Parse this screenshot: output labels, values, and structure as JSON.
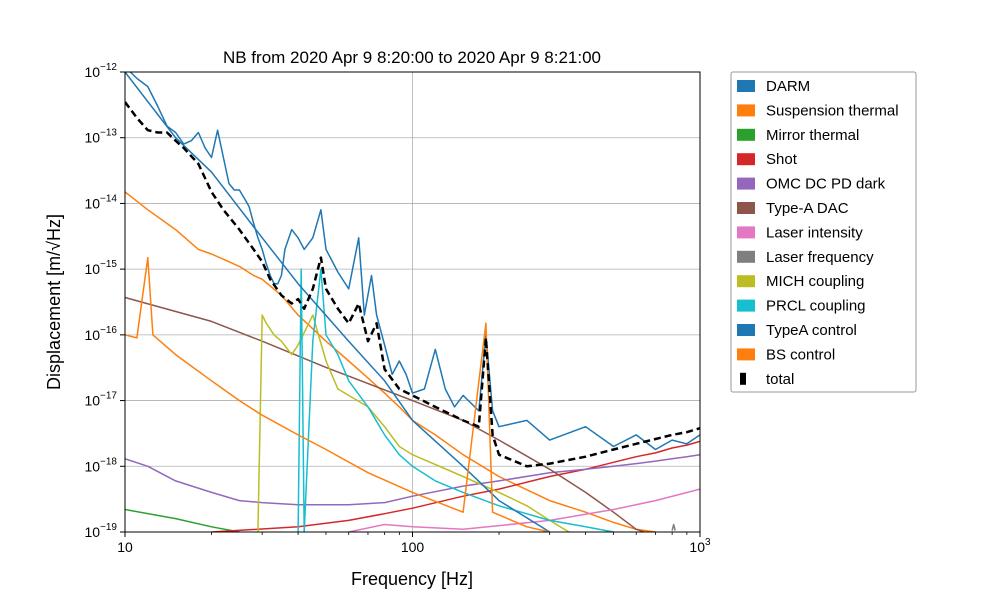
{
  "chart_data": {
    "type": "line",
    "title": "NB from 2020 Apr 9 8:20:00 to 2020 Apr 9 8:21:00",
    "xlabel": "Frequency [Hz]",
    "ylabel": "Displacement [m/√Hz]",
    "xscale": "log",
    "yscale": "log",
    "xlim": [
      10,
      1000
    ],
    "ylim": [
      1e-19,
      1e-12
    ],
    "grid": true,
    "legend_position": "outside-right",
    "x_ticks": [
      {
        "value": 10,
        "label": "10"
      },
      {
        "value": 100,
        "label": "100"
      },
      {
        "value": 1000,
        "label": "10^3"
      }
    ],
    "y_ticks": [
      {
        "value": 1e-19,
        "label": "10^-19"
      },
      {
        "value": 1e-18,
        "label": "10^-18"
      },
      {
        "value": 1e-17,
        "label": "10^-17"
      },
      {
        "value": 1e-16,
        "label": "10^-16"
      },
      {
        "value": 1e-15,
        "label": "10^-15"
      },
      {
        "value": 1e-14,
        "label": "10^-14"
      },
      {
        "value": 1e-13,
        "label": "10^-13"
      },
      {
        "value": 1e-12,
        "label": "10^-12"
      }
    ],
    "series": [
      {
        "name": "DARM",
        "color": "#1f77b4",
        "style": "solid",
        "points": [
          [
            10,
            1.2e-12
          ],
          [
            11,
            8e-13
          ],
          [
            12,
            6e-13
          ],
          [
            13,
            3e-13
          ],
          [
            14,
            1.5e-13
          ],
          [
            15,
            1.2e-13
          ],
          [
            16,
            8e-14
          ],
          [
            17,
            9e-14
          ],
          [
            18,
            1.2e-13
          ],
          [
            19,
            7e-14
          ],
          [
            20,
            5e-14
          ],
          [
            21,
            1.3e-13
          ],
          [
            22,
            5e-14
          ],
          [
            23,
            2e-14
          ],
          [
            24,
            1.6e-14
          ],
          [
            25,
            1.6e-14
          ],
          [
            26,
            1.2e-14
          ],
          [
            27,
            9e-15
          ],
          [
            28,
            5e-15
          ],
          [
            29,
            3e-15
          ],
          [
            30,
            2e-15
          ],
          [
            31,
            1.2e-15
          ],
          [
            32,
            8e-16
          ],
          [
            33,
            6e-16
          ],
          [
            34,
            6e-16
          ],
          [
            35,
            8e-16
          ],
          [
            36,
            2e-15
          ],
          [
            38,
            4e-15
          ],
          [
            40,
            3e-15
          ],
          [
            42,
            2e-15
          ],
          [
            45,
            3e-15
          ],
          [
            48,
            8e-15
          ],
          [
            50,
            2e-15
          ],
          [
            55,
            9e-16
          ],
          [
            60,
            5e-16
          ],
          [
            65,
            3e-15
          ],
          [
            68,
            2e-16
          ],
          [
            72,
            8e-16
          ],
          [
            75,
            2e-16
          ],
          [
            80,
            7e-17
          ],
          [
            85,
            2.5e-17
          ],
          [
            90,
            4e-17
          ],
          [
            95,
            2.5e-17
          ],
          [
            100,
            1.3e-17
          ],
          [
            110,
            1.5e-17
          ],
          [
            120,
            6e-17
          ],
          [
            130,
            1.5e-17
          ],
          [
            140,
            8e-18
          ],
          [
            150,
            1.2e-17
          ],
          [
            170,
            7e-18
          ],
          [
            180,
            1e-16
          ],
          [
            190,
            7e-18
          ],
          [
            200,
            4e-18
          ],
          [
            250,
            5e-18
          ],
          [
            300,
            2.5e-18
          ],
          [
            400,
            4e-18
          ],
          [
            500,
            2e-18
          ],
          [
            600,
            3e-18
          ],
          [
            700,
            1.8e-18
          ],
          [
            800,
            2.5e-18
          ],
          [
            900,
            2.2e-18
          ],
          [
            1000,
            3e-18
          ]
        ]
      },
      {
        "name": "Suspension thermal",
        "color": "#ff7f0e",
        "style": "solid",
        "points": [
          [
            10,
            1.5e-14
          ],
          [
            12,
            8e-15
          ],
          [
            15,
            4e-15
          ],
          [
            18,
            2e-15
          ],
          [
            20,
            1.7e-15
          ],
          [
            25,
            1.1e-15
          ],
          [
            28,
            8e-16
          ],
          [
            30,
            7e-16
          ],
          [
            35,
            4e-16
          ],
          [
            40,
            2e-16
          ],
          [
            50,
            8e-17
          ],
          [
            60,
            4e-17
          ],
          [
            70,
            2.2e-17
          ],
          [
            80,
            1.3e-17
          ],
          [
            90,
            8e-18
          ],
          [
            100,
            5e-18
          ],
          [
            120,
            3e-18
          ],
          [
            150,
            1.5e-18
          ],
          [
            200,
            7e-19
          ],
          [
            300,
            3e-19
          ],
          [
            400,
            2e-19
          ],
          [
            500,
            1.4e-19
          ],
          [
            600,
            1.1e-19
          ],
          [
            700,
            1e-19
          ]
        ]
      },
      {
        "name": "Mirror thermal",
        "color": "#2ca02c",
        "style": "solid",
        "points": [
          [
            10,
            2.2e-19
          ],
          [
            15,
            1.6e-19
          ],
          [
            20,
            1.2e-19
          ],
          [
            25,
            1e-19
          ]
        ]
      },
      {
        "name": "Shot",
        "color": "#d62728",
        "style": "solid",
        "points": [
          [
            20,
            1e-19
          ],
          [
            40,
            1.2e-19
          ],
          [
            60,
            1.5e-19
          ],
          [
            80,
            1.9e-19
          ],
          [
            100,
            2.3e-19
          ],
          [
            150,
            3.5e-19
          ],
          [
            200,
            4.5e-19
          ],
          [
            300,
            7e-19
          ],
          [
            400,
            9e-19
          ],
          [
            500,
            1.15e-18
          ],
          [
            600,
            1.4e-18
          ],
          [
            700,
            1.6e-18
          ],
          [
            800,
            1.9e-18
          ],
          [
            900,
            2.1e-18
          ],
          [
            1000,
            2.4e-18
          ]
        ]
      },
      {
        "name": "OMC DC PD dark",
        "color": "#9467bd",
        "style": "solid",
        "points": [
          [
            10,
            1.3e-18
          ],
          [
            12,
            1e-18
          ],
          [
            15,
            6e-19
          ],
          [
            20,
            4e-19
          ],
          [
            25,
            3e-19
          ],
          [
            30,
            2.8e-19
          ],
          [
            40,
            2.6e-19
          ],
          [
            50,
            2.6e-19
          ],
          [
            60,
            2.6e-19
          ],
          [
            80,
            2.8e-19
          ],
          [
            100,
            3.5e-19
          ],
          [
            150,
            5e-19
          ],
          [
            200,
            6e-19
          ],
          [
            300,
            8e-19
          ],
          [
            400,
            9e-19
          ],
          [
            500,
            1e-18
          ],
          [
            600,
            1.1e-18
          ],
          [
            700,
            1.2e-18
          ],
          [
            800,
            1.3e-18
          ],
          [
            900,
            1.4e-18
          ],
          [
            1000,
            1.5e-18
          ]
        ]
      },
      {
        "name": "Type-A DAC",
        "color": "#8c564b",
        "style": "solid",
        "points": [
          [
            10,
            3.7e-16
          ],
          [
            20,
            1.6e-16
          ],
          [
            30,
            8e-17
          ],
          [
            50,
            3.2e-17
          ],
          [
            100,
            1e-17
          ],
          [
            150,
            5e-18
          ],
          [
            200,
            2.5e-18
          ],
          [
            300,
            9e-19
          ],
          [
            400,
            4e-19
          ],
          [
            500,
            2e-19
          ],
          [
            600,
            1.1e-19
          ],
          [
            640,
            1e-19
          ]
        ]
      },
      {
        "name": "Laser intensity",
        "color": "#e377c2",
        "style": "solid",
        "points": [
          [
            60,
            1e-19
          ],
          [
            80,
            1.3e-19
          ],
          [
            100,
            1.2e-19
          ],
          [
            150,
            1.1e-19
          ],
          [
            300,
            1.5e-19
          ],
          [
            500,
            2.2e-19
          ],
          [
            700,
            3e-19
          ],
          [
            1000,
            4.5e-19
          ]
        ]
      },
      {
        "name": "Laser frequency",
        "color": "#7f7f7f",
        "style": "solid",
        "points": [
          [
            800,
            1.05e-19
          ],
          [
            810,
            1.3e-19
          ],
          [
            820,
            1.05e-19
          ]
        ]
      },
      {
        "name": "MICH coupling",
        "color": "#bcbd22",
        "style": "solid",
        "points": [
          [
            29,
            1e-19
          ],
          [
            30,
            2e-16
          ],
          [
            31,
            1.5e-16
          ],
          [
            33,
            1e-16
          ],
          [
            35,
            8e-17
          ],
          [
            38,
            5e-17
          ],
          [
            40,
            7e-17
          ],
          [
            45,
            2e-16
          ],
          [
            50,
            4e-17
          ],
          [
            55,
            1.5e-17
          ],
          [
            60,
            1.2e-17
          ],
          [
            70,
            8e-18
          ],
          [
            80,
            4e-18
          ],
          [
            90,
            2e-18
          ],
          [
            100,
            1.5e-18
          ],
          [
            150,
            7e-19
          ],
          [
            200,
            4e-19
          ],
          [
            250,
            2.5e-19
          ],
          [
            300,
            1.5e-19
          ],
          [
            350,
            1e-19
          ]
        ]
      },
      {
        "name": "PRCL coupling",
        "color": "#17becf",
        "style": "solid",
        "points": [
          [
            40,
            1e-19
          ],
          [
            41,
            1e-15
          ],
          [
            42,
            1e-19
          ],
          [
            45,
            8e-17
          ],
          [
            48,
            1e-15
          ],
          [
            50,
            1e-16
          ],
          [
            55,
            5e-17
          ],
          [
            60,
            2e-17
          ],
          [
            70,
            8e-18
          ],
          [
            80,
            3e-18
          ],
          [
            90,
            1.5e-18
          ],
          [
            100,
            1e-18
          ],
          [
            120,
            6e-19
          ],
          [
            150,
            4e-19
          ],
          [
            200,
            2.5e-19
          ],
          [
            300,
            1.5e-19
          ],
          [
            400,
            1.2e-19
          ],
          [
            500,
            1e-19
          ]
        ]
      },
      {
        "name": "TypeA control",
        "color": "#1f77b4",
        "style": "solid",
        "points": [
          [
            10,
            1e-12
          ],
          [
            15,
            1e-13
          ],
          [
            20,
            3e-14
          ],
          [
            30,
            3e-15
          ],
          [
            40,
            6e-16
          ],
          [
            60,
            8e-17
          ],
          [
            80,
            2e-17
          ],
          [
            100,
            5e-18
          ],
          [
            150,
            1e-18
          ],
          [
            200,
            3e-19
          ],
          [
            300,
            1e-19
          ]
        ]
      },
      {
        "name": "BS control",
        "color": "#ff7f0e",
        "style": "solid",
        "points": [
          [
            10,
            1e-16
          ],
          [
            11,
            9e-17
          ],
          [
            12,
            1.5e-15
          ],
          [
            12.5,
            1e-16
          ],
          [
            15,
            5e-17
          ],
          [
            20,
            2e-17
          ],
          [
            25,
            1e-17
          ],
          [
            30,
            6e-18
          ],
          [
            40,
            3e-18
          ],
          [
            50,
            1.8e-18
          ],
          [
            70,
            8e-19
          ],
          [
            100,
            4e-19
          ],
          [
            150,
            2e-19
          ],
          [
            180,
            1.5e-16
          ],
          [
            190,
            2e-19
          ],
          [
            250,
            1.2e-19
          ],
          [
            300,
            1e-19
          ]
        ]
      },
      {
        "name": "total",
        "color": "#000000",
        "style": "dashed",
        "points": [
          [
            10,
            3.5e-13
          ],
          [
            11,
            2e-13
          ],
          [
            12,
            1.3e-13
          ],
          [
            13,
            1.2e-13
          ],
          [
            14,
            1.2e-13
          ],
          [
            15,
            9e-14
          ],
          [
            16,
            7e-14
          ],
          [
            18,
            4e-14
          ],
          [
            20,
            1.5e-14
          ],
          [
            22,
            8e-15
          ],
          [
            25,
            4e-15
          ],
          [
            28,
            2e-15
          ],
          [
            30,
            1.3e-15
          ],
          [
            32,
            7e-16
          ],
          [
            35,
            4e-16
          ],
          [
            38,
            3e-16
          ],
          [
            40,
            3.5e-16
          ],
          [
            42,
            2.5e-16
          ],
          [
            45,
            5e-16
          ],
          [
            48,
            1.5e-15
          ],
          [
            50,
            5e-16
          ],
          [
            55,
            2.5e-16
          ],
          [
            60,
            1.5e-16
          ],
          [
            65,
            3e-16
          ],
          [
            70,
            8e-17
          ],
          [
            75,
            1.5e-16
          ],
          [
            80,
            3e-17
          ],
          [
            90,
            1.5e-17
          ],
          [
            100,
            1.2e-17
          ],
          [
            120,
            8e-18
          ],
          [
            150,
            5e-18
          ],
          [
            170,
            4e-18
          ],
          [
            180,
            9e-17
          ],
          [
            190,
            3e-18
          ],
          [
            200,
            1.5e-18
          ],
          [
            250,
            1e-18
          ],
          [
            300,
            1.1e-18
          ],
          [
            400,
            1.4e-18
          ],
          [
            500,
            1.8e-18
          ],
          [
            600,
            2.2e-18
          ],
          [
            700,
            2.6e-18
          ],
          [
            800,
            3e-18
          ],
          [
            900,
            3.3e-18
          ],
          [
            1000,
            3.8e-18
          ]
        ]
      }
    ]
  }
}
